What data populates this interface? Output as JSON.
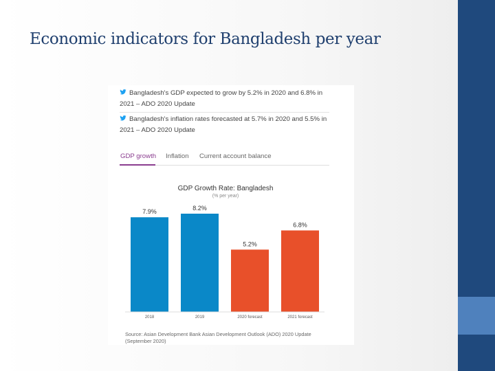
{
  "slide": {
    "title": "Economic indicators for Bangladesh per year"
  },
  "card": {
    "tweets": [
      {
        "line1": "Bangladesh's GDP expected to grow by 5.2% in 2020 and 6.8% in",
        "line2": "2021 – ADO 2020 Update",
        "icon": "twitter-bird-icon"
      },
      {
        "line1": "Bangladesh's inflation rates forecasted at 5.7% in 2020 and 5.5% in",
        "line2": "2021 – ADO 2020 Update",
        "icon": "twitter-bird-icon"
      }
    ],
    "tabs": [
      {
        "label": "GDP growth",
        "active": true
      },
      {
        "label": "Inflation",
        "active": false
      },
      {
        "label": "Current account balance",
        "active": false
      }
    ],
    "source_line1": "Source: Asian Development Bank  Asian Development Outlook (ADO) 2020 Update",
    "source_line2": "(September 2020)"
  },
  "colors": {
    "actual": "#0a88c8",
    "forecast": "#e8502a",
    "tab_active": "#8a3c8f",
    "band": "#1f497d",
    "band_accent": "#4f81bd",
    "title": "#1f3f6e"
  },
  "chart_data": {
    "type": "bar",
    "title": "GDP Growth Rate: Bangladesh",
    "subtitle": "(% per year)",
    "categories": [
      "2018",
      "2019",
      "2020 forecast",
      "2021 forecast"
    ],
    "values": [
      7.9,
      8.2,
      5.2,
      6.8
    ],
    "value_labels": [
      "7.9%",
      "8.2%",
      "5.2%",
      "6.8%"
    ],
    "bar_kind": [
      "actual",
      "actual",
      "forecast",
      "forecast"
    ],
    "ylim": [
      0,
      8.2
    ],
    "grid": false,
    "legend": "none"
  }
}
